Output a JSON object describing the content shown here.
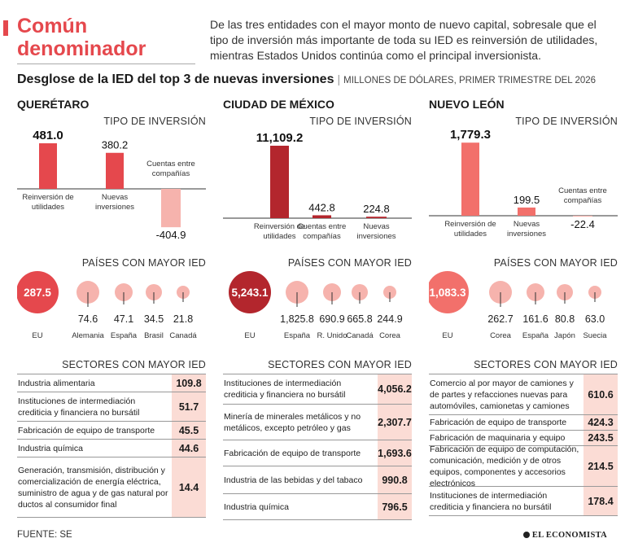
{
  "header": {
    "title": "Común denominador",
    "intro": "De las tres entidades con el mayor monto de nuevo capital, sobresale que el tipo de inversión más importante de toda su IED es reinversión de utilidades, mientras Estados Unidos continúa como el principal inversionista.",
    "subtitle": "Desglose de la IED del top 3 de nuevas inversiones",
    "units": "MILLONES DE DÓLARES, PRIMER TRIMESTRE DEL 2026"
  },
  "labels": {
    "investment_type": "TIPO DE INVERSIÓN",
    "countries": "PAÍSES CON MAYOR IED",
    "sectors": "SECTORES CON MAYOR IED"
  },
  "footer": {
    "source": "FUENTE: SE",
    "logo": "EL ECONOMISTA"
  },
  "colors": {
    "accent": "#e5484d",
    "bar_positive": "#e5484d",
    "bar_negative": "#f6b3ad",
    "bubble_fill": "#f6b3ad",
    "table_value_bg": "#fbdcd5"
  },
  "chart_data": [
    {
      "type": "bar",
      "state": "QUERÉTARO",
      "categories": [
        "Reinversión de utilidades",
        "Nuevas inversiones",
        "Cuentas entre compañías"
      ],
      "values": [
        481.0,
        380.2,
        -404.9
      ],
      "value_labels": [
        "481.0",
        "380.2",
        "-404.9"
      ],
      "bar_colors": [
        "#e5484d",
        "#e5484d",
        "#f6b3ad"
      ],
      "countries": {
        "type": "bubble",
        "names": [
          "EU",
          "Alemania",
          "España",
          "Brasil",
          "Canadá"
        ],
        "values": [
          287.5,
          74.6,
          47.1,
          34.5,
          21.8
        ],
        "labels": [
          "287.5",
          "74.6",
          "47.1",
          "34.5",
          "21.8"
        ]
      },
      "sectors": [
        {
          "name": "Industria alimentaria",
          "value": "109.8"
        },
        {
          "name": "Instituciones de intermediación crediticia y financiera no bursátil",
          "value": "51.7"
        },
        {
          "name": "Fabricación de equipo de transporte",
          "value": "45.5"
        },
        {
          "name": "Industria química",
          "value": "44.6"
        },
        {
          "name": "Generación, transmisión, distribución y comercialización de energía eléctrica, suministro de agua y de gas natural por ductos al consumidor final",
          "value": "14.4"
        }
      ]
    },
    {
      "type": "bar",
      "state": "CIUDAD DE MÉXICO",
      "categories": [
        "Reinversión de utilidades",
        "Cuentas entre compañías",
        "Nuevas inversiones"
      ],
      "values": [
        11109.2,
        442.8,
        224.8
      ],
      "value_labels": [
        "11,109.2",
        "442.8",
        "224.8"
      ],
      "bar_colors": [
        "#b3262d",
        "#b3262d",
        "#b3262d"
      ],
      "countries": {
        "type": "bubble",
        "names": [
          "EU",
          "España",
          "R. Unido",
          "Canadá",
          "Corea"
        ],
        "values": [
          5243.1,
          1825.8,
          690.9,
          665.8,
          244.9
        ],
        "labels": [
          "5,243.1",
          "1,825.8",
          "690.9",
          "665.8",
          "244.9"
        ]
      },
      "sectors": [
        {
          "name": "Instituciones de intermediación crediticia y financiera no bursátil",
          "value": "4,056.2"
        },
        {
          "name": "Minería de minerales metálicos y no metálicos, excepto petróleo y gas",
          "value": "2,307.7"
        },
        {
          "name": "Fabricación de equipo de transporte",
          "value": "1,693.6"
        },
        {
          "name": "Industria de las bebidas y del tabaco",
          "value": "990.8"
        },
        {
          "name": "Industria química",
          "value": "796.5"
        }
      ]
    },
    {
      "type": "bar",
      "state": "NUEVO LEÓN",
      "categories": [
        "Reinversión de utilidades",
        "Nuevas inversiones",
        "Cuentas entre compañías"
      ],
      "values": [
        1779.3,
        199.5,
        -22.4
      ],
      "value_labels": [
        "1,779.3",
        "199.5",
        "-22.4"
      ],
      "bar_colors": [
        "#f2706b",
        "#f2706b",
        "#f6b3ad"
      ],
      "countries": {
        "type": "bubble",
        "names": [
          "EU",
          "Corea",
          "España",
          "Japón",
          "Suecia"
        ],
        "values": [
          1083.3,
          262.7,
          161.6,
          80.8,
          63.0
        ],
        "labels": [
          "1,083.3",
          "262.7",
          "161.6",
          "80.8",
          "63.0"
        ]
      },
      "sectors": [
        {
          "name": "Comercio al por mayor de camiones y de partes y refacciones nuevas para automóviles, camionetas y camiones",
          "value": "610.6"
        },
        {
          "name": "Fabricación de equipo de transporte",
          "value": "424.3"
        },
        {
          "name": "Fabricación de maquinaria y equipo",
          "value": "243.5"
        },
        {
          "name": "Fabricación de equipo de computación, comunicación, medición y de otros equipos, componentes y accesorios electrónicos",
          "value": "214.5"
        },
        {
          "name": "Instituciones de intermediación crediticia y financiera no bursátil",
          "value": "178.4"
        }
      ]
    }
  ]
}
